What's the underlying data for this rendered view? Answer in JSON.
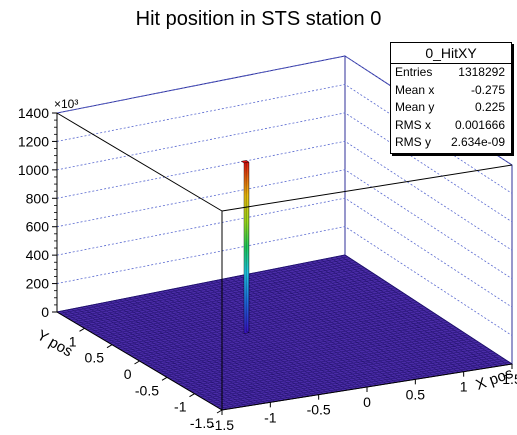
{
  "chart_data": {
    "type": "lego",
    "title": "Hit position in STS station 0",
    "xlabel": "X pos",
    "ylabel": "Y pos",
    "zlabel": "",
    "z_exponent": "×10³",
    "xlim": [
      -1.5,
      1.5
    ],
    "ylim": [
      -1.5,
      1.5
    ],
    "zlim": [
      0,
      1400
    ],
    "x_ticks": [
      "-1.5",
      "-1",
      "-0.5",
      "0",
      "0.5",
      "1",
      "1.5"
    ],
    "y_ticks": [
      "-1.5",
      "-1",
      "-0.5",
      "0",
      "0.5",
      "1"
    ],
    "z_ticks": [
      "0",
      "200",
      "400",
      "600",
      "800",
      "1000",
      "1200",
      "1400"
    ],
    "bins_x": 60,
    "bins_y": 60,
    "peak": {
      "x": -0.275,
      "y": 0.225,
      "value": 1200
    },
    "background_value": 0,
    "colors": {
      "floor": "#4b2ca8",
      "grid_line": "#20106a",
      "frame": "#2f2f9a",
      "dotted_grid": "#5a6ad0"
    },
    "stats": {
      "title": "0_HitXY",
      "rows": [
        {
          "label": "Entries",
          "value": "1318292"
        },
        {
          "label": "Mean x",
          "value": "-0.275"
        },
        {
          "label": "Mean y",
          "value": "0.225"
        },
        {
          "label": "RMS x",
          "value": "0.001666"
        },
        {
          "label": "RMS y",
          "value": "2.634e-09"
        }
      ]
    }
  }
}
